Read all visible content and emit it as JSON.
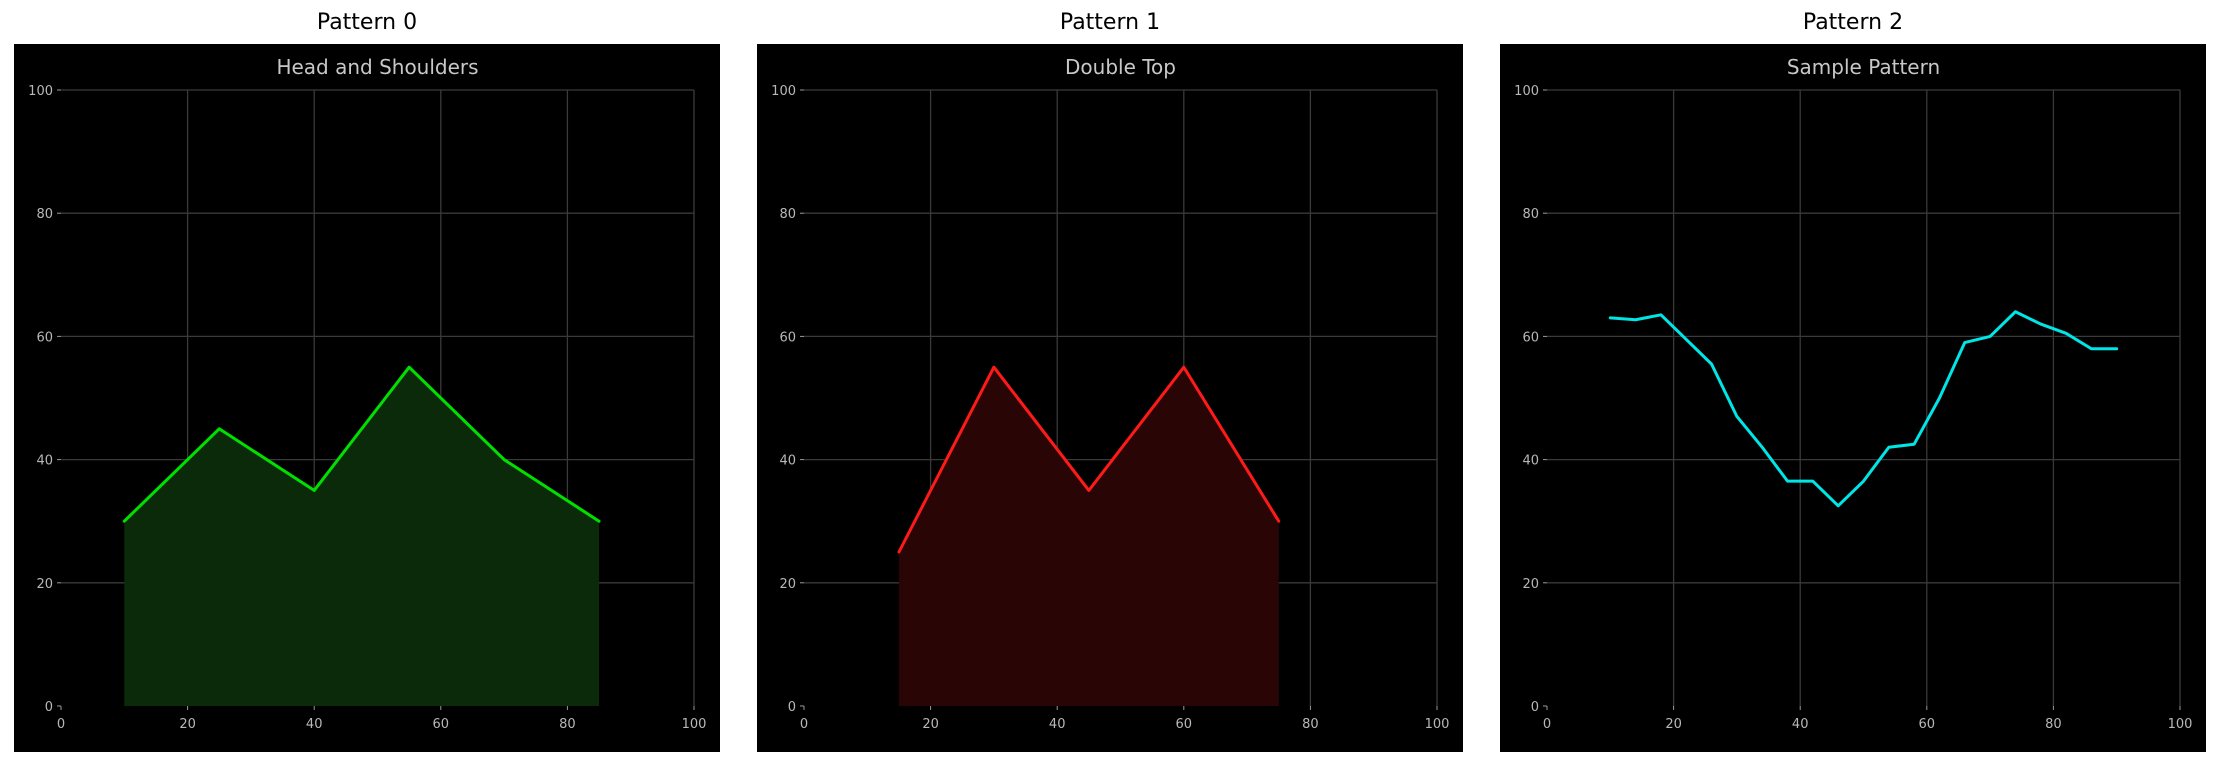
{
  "figure": {
    "panels": [
      {
        "title": "Pattern 0"
      },
      {
        "title": "Pattern 1"
      },
      {
        "title": "Pattern 2"
      }
    ]
  },
  "chart_data": [
    {
      "type": "area",
      "title": "Head and Shoulders",
      "xlabel": "",
      "ylabel": "",
      "xlim": [
        0,
        100
      ],
      "ylim": [
        0,
        100
      ],
      "xticks": [
        0,
        20,
        40,
        60,
        80,
        100
      ],
      "yticks": [
        0,
        20,
        40,
        60,
        80,
        100
      ],
      "grid": true,
      "color": "#00e000",
      "fill_color": "#0a2a0a",
      "series": [
        {
          "x": [
            10,
            25,
            40,
            55,
            70,
            85
          ],
          "y": [
            30,
            45,
            35,
            55,
            40,
            30
          ]
        }
      ]
    },
    {
      "type": "area",
      "title": "Double Top",
      "xlabel": "",
      "ylabel": "",
      "xlim": [
        0,
        100
      ],
      "ylim": [
        0,
        100
      ],
      "xticks": [
        0,
        20,
        40,
        60,
        80,
        100
      ],
      "yticks": [
        0,
        20,
        40,
        60,
        80,
        100
      ],
      "grid": true,
      "color": "#ff1a1a",
      "fill_color": "#2a0505",
      "series": [
        {
          "x": [
            15,
            30,
            45,
            60,
            75
          ],
          "y": [
            25,
            55,
            35,
            55,
            30
          ]
        }
      ]
    },
    {
      "type": "line",
      "title": "Sample Pattern",
      "xlabel": "",
      "ylabel": "",
      "xlim": [
        0,
        100
      ],
      "ylim": [
        0,
        100
      ],
      "xticks": [
        0,
        20,
        40,
        60,
        80,
        100
      ],
      "yticks": [
        0,
        20,
        40,
        60,
        80,
        100
      ],
      "grid": true,
      "color": "#00e5e5",
      "fill_color": null,
      "series": [
        {
          "x": [
            10,
            14,
            18,
            22,
            26,
            30,
            34,
            38,
            42,
            46,
            50,
            54,
            58,
            62,
            66,
            70,
            74,
            78,
            82,
            86,
            90
          ],
          "y": [
            63,
            62.7,
            63.5,
            59.5,
            55.5,
            47,
            42,
            36.5,
            36.5,
            32.5,
            36.5,
            42,
            42.5,
            50,
            59,
            60,
            64,
            62,
            60.5,
            58,
            58
          ]
        }
      ]
    }
  ]
}
